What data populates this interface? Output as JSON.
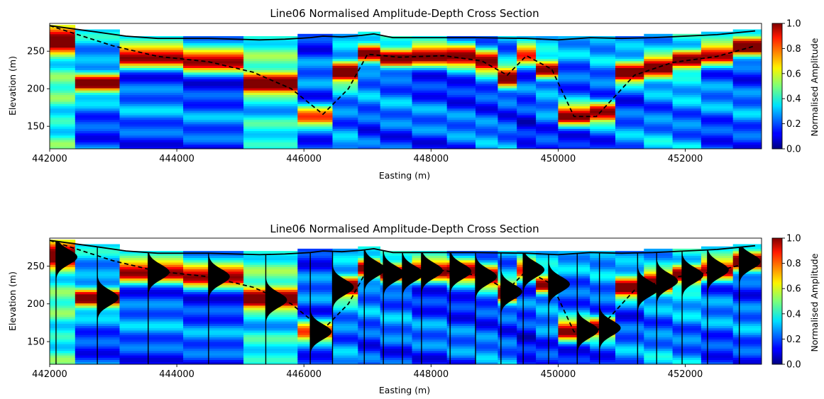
{
  "chart_data": [
    {
      "type": "heatmap",
      "title": "Line06 Normalised Amplitude-Depth Cross Section",
      "xlabel": "Easting (m)",
      "ylabel": "Elevation (m)",
      "xlim": [
        442000,
        453200
      ],
      "ylim": [
        120,
        287
      ],
      "xticks": [
        "442000",
        "444000",
        "446000",
        "448000",
        "450000",
        "452000"
      ],
      "yticks": [
        "150",
        "200",
        "250"
      ],
      "colorbar": {
        "label": "Normalised Amplitude",
        "ticks": [
          "0.0",
          "0.2",
          "0.4",
          "0.6",
          "0.8",
          "1.0"
        ],
        "colormap": "jet",
        "range": [
          0,
          1
        ]
      },
      "traces": [
        {
          "x0": 441950,
          "x1": 442400,
          "peak": 262,
          "bg": 0.5
        },
        {
          "x0": 442400,
          "x1": 443100,
          "peak": 208,
          "bg": 0.3
        },
        {
          "x0": 443100,
          "x1": 444100,
          "peak": 242,
          "bg": 0.3
        },
        {
          "x0": 444100,
          "x1": 445050,
          "peak": 236,
          "bg": 0.28
        },
        {
          "x0": 445050,
          "x1": 445900,
          "peak": 205,
          "bg": 0.42
        },
        {
          "x0": 445900,
          "x1": 446450,
          "peak": 163,
          "bg": 0.2
        },
        {
          "x0": 446450,
          "x1": 446850,
          "peak": 222,
          "bg": 0.35
        },
        {
          "x0": 446850,
          "x1": 447200,
          "peak": 246,
          "bg": 0.3
        },
        {
          "x0": 447200,
          "x1": 447700,
          "peak": 240,
          "bg": 0.3
        },
        {
          "x0": 447700,
          "x1": 448250,
          "peak": 244,
          "bg": 0.28
        },
        {
          "x0": 448250,
          "x1": 448700,
          "peak": 243,
          "bg": 0.28
        },
        {
          "x0": 448700,
          "x1": 449050,
          "peak": 236,
          "bg": 0.3
        },
        {
          "x0": 449050,
          "x1": 449350,
          "peak": 216,
          "bg": 0.3
        },
        {
          "x0": 449350,
          "x1": 449650,
          "peak": 245,
          "bg": 0.25
        },
        {
          "x0": 449650,
          "x1": 450000,
          "peak": 226,
          "bg": 0.3
        },
        {
          "x0": 450000,
          "x1": 450500,
          "peak": 165,
          "bg": 0.25
        },
        {
          "x0": 450500,
          "x1": 450900,
          "peak": 168,
          "bg": 0.25
        },
        {
          "x0": 450900,
          "x1": 451350,
          "peak": 220,
          "bg": 0.3
        },
        {
          "x0": 451350,
          "x1": 451800,
          "peak": 230,
          "bg": 0.35
        },
        {
          "x0": 451800,
          "x1": 452250,
          "peak": 238,
          "bg": 0.35
        },
        {
          "x0": 452250,
          "x1": 452750,
          "peak": 245,
          "bg": 0.3
        },
        {
          "x0": 452750,
          "x1": 453200,
          "peak": 256,
          "bg": 0.3
        }
      ],
      "surface": [
        [
          442000,
          284
        ],
        [
          442700,
          276
        ],
        [
          443200,
          270
        ],
        [
          443700,
          267
        ],
        [
          444500,
          267
        ],
        [
          445300,
          265
        ],
        [
          445700,
          266
        ],
        [
          446100,
          268
        ],
        [
          446300,
          270
        ],
        [
          446600,
          269
        ],
        [
          446900,
          271
        ],
        [
          447100,
          273
        ],
        [
          447400,
          268
        ],
        [
          448000,
          268
        ],
        [
          448700,
          268
        ],
        [
          449500,
          267
        ],
        [
          450000,
          265
        ],
        [
          450500,
          268
        ],
        [
          451000,
          267
        ],
        [
          451500,
          268
        ],
        [
          452000,
          270
        ],
        [
          452500,
          272
        ],
        [
          453100,
          277
        ]
      ],
      "interface": [
        [
          442000,
          284
        ],
        [
          443000,
          257
        ],
        [
          443700,
          243
        ],
        [
          444500,
          236
        ],
        [
          445200,
          222
        ],
        [
          445800,
          200
        ],
        [
          446300,
          166
        ],
        [
          446700,
          200
        ],
        [
          447000,
          246
        ],
        [
          447500,
          242
        ],
        [
          448200,
          244
        ],
        [
          448800,
          237
        ],
        [
          449200,
          218
        ],
        [
          449500,
          244
        ],
        [
          449900,
          226
        ],
        [
          450250,
          163
        ],
        [
          450600,
          163
        ],
        [
          451200,
          218
        ],
        [
          451800,
          235
        ],
        [
          452500,
          243
        ],
        [
          453100,
          257
        ]
      ]
    },
    {
      "type": "heatmap",
      "title": "Line06 Normalised Amplitude-Depth Cross Section",
      "xlabel": "Easting (m)",
      "ylabel": "Elevation (m)",
      "xlim": [
        442000,
        453200
      ],
      "ylim": [
        120,
        287
      ],
      "xticks": [
        "442000",
        "444000",
        "446000",
        "448000",
        "450000",
        "452000"
      ],
      "yticks": [
        "150",
        "200",
        "250"
      ],
      "colorbar": {
        "label": "Normalised Amplitude",
        "ticks": [
          "0.0",
          "0.2",
          "0.4",
          "0.6",
          "0.8",
          "1.0"
        ],
        "colormap": "jet",
        "range": [
          0,
          1
        ]
      },
      "wiggles": [
        442100,
        442750,
        443550,
        444500,
        445400,
        446100,
        446450,
        446950,
        447250,
        447550,
        447850,
        448300,
        448700,
        449100,
        449450,
        449850,
        450300,
        450650,
        451250,
        451550,
        451950,
        452350,
        452850
      ],
      "traces_from": 0
    }
  ]
}
